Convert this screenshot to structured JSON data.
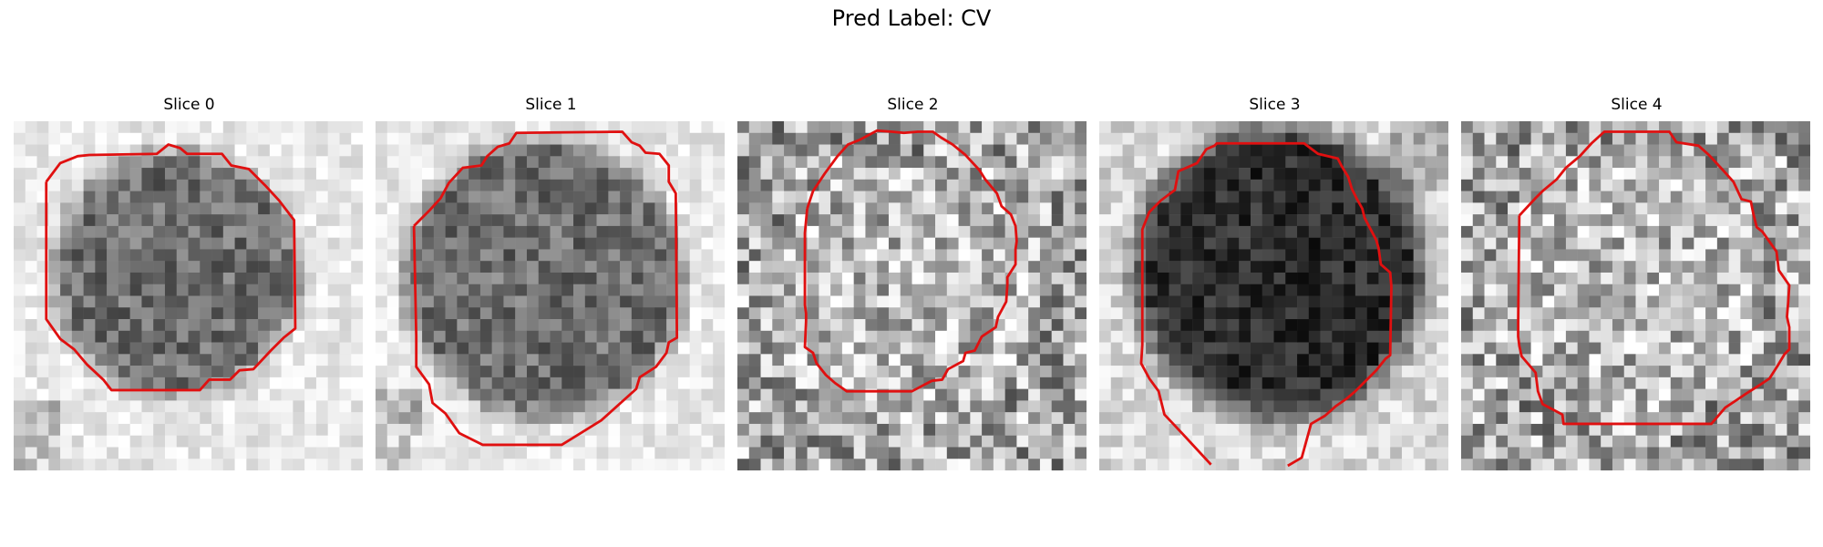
{
  "figure": {
    "title": "Pred Label: CV"
  },
  "slices": [
    {
      "label": "Slice 0",
      "style": "dark_blob_light_bg"
    },
    {
      "label": "Slice 1",
      "style": "dark_blob_light_bg"
    },
    {
      "label": "Slice 2",
      "style": "textured_noise"
    },
    {
      "label": "Slice 3",
      "style": "very_dark_blob"
    },
    {
      "label": "Slice 4",
      "style": "textured_noise"
    }
  ],
  "colors": {
    "contour": "#e01010",
    "background": "#ffffff"
  }
}
